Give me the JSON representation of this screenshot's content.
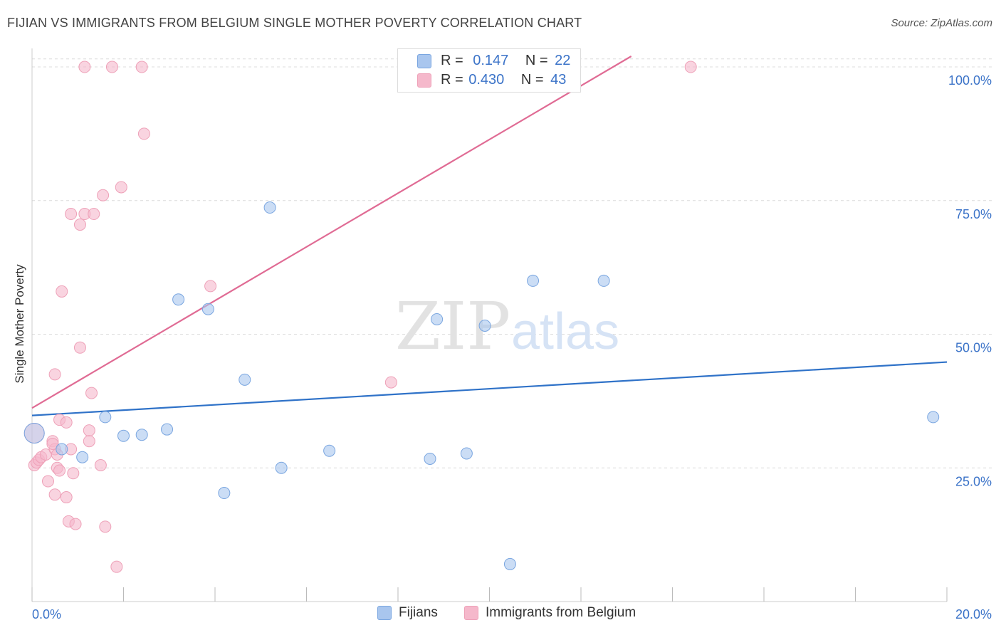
{
  "header": {
    "title": "FIJIAN VS IMMIGRANTS FROM BELGIUM SINGLE MOTHER POVERTY CORRELATION CHART",
    "source": "Source: ZipAtlas.com"
  },
  "watermark": {
    "zip": "ZIP",
    "atlas": "atlas"
  },
  "stats": {
    "r_label": "R =",
    "n_label": "N =",
    "rows": [
      {
        "r": "0.147",
        "n": "22",
        "color": "#a9c6ee"
      },
      {
        "r": "0.430",
        "n": "43",
        "color": "#f5b8cb"
      }
    ]
  },
  "legend": {
    "items": [
      {
        "label": "Fijians",
        "color": "#a9c6ee"
      },
      {
        "label": "Immigrants from Belgium",
        "color": "#f5b8cb"
      }
    ]
  },
  "chart_data": {
    "type": "scatter",
    "title": "FIJIAN VS IMMIGRANTS FROM BELGIUM SINGLE MOTHER POVERTY CORRELATION CHART",
    "xlabel": "",
    "ylabel": "Single Mother Poverty",
    "xlim": [
      0,
      20
    ],
    "ylim": [
      0,
      102
    ],
    "x_tick_labels": [
      "0.0%",
      "20.0%"
    ],
    "y_ticks": [
      25,
      50,
      75,
      100
    ],
    "y_tick_labels": [
      "25.0%",
      "50.0%",
      "75.0%",
      "100.0%"
    ],
    "grid": true,
    "series": [
      {
        "name": "Fijians",
        "color": "#a9c6ee",
        "stroke": "#7aa6e0",
        "line_color": "#2f72c8",
        "trend": {
          "x": [
            0,
            20
          ],
          "y": [
            34.8,
            44.8
          ]
        },
        "points": [
          {
            "x": 0.05,
            "y": 31.5
          },
          {
            "x": 0.65,
            "y": 28.5
          },
          {
            "x": 1.1,
            "y": 27.0
          },
          {
            "x": 1.6,
            "y": 34.5
          },
          {
            "x": 2.0,
            "y": 31.0
          },
          {
            "x": 2.4,
            "y": 31.2
          },
          {
            "x": 2.95,
            "y": 32.2
          },
          {
            "x": 3.2,
            "y": 56.5
          },
          {
            "x": 3.85,
            "y": 54.7
          },
          {
            "x": 4.2,
            "y": 20.3
          },
          {
            "x": 4.65,
            "y": 41.5
          },
          {
            "x": 5.2,
            "y": 73.7
          },
          {
            "x": 5.45,
            "y": 25.0
          },
          {
            "x": 6.5,
            "y": 28.2
          },
          {
            "x": 8.7,
            "y": 26.7
          },
          {
            "x": 8.85,
            "y": 52.8
          },
          {
            "x": 9.5,
            "y": 27.7
          },
          {
            "x": 9.9,
            "y": 51.6
          },
          {
            "x": 10.45,
            "y": 7.0
          },
          {
            "x": 10.95,
            "y": 60.0
          },
          {
            "x": 12.5,
            "y": 60.0
          },
          {
            "x": 19.7,
            "y": 34.5
          }
        ]
      },
      {
        "name": "Immigrants from Belgium",
        "color": "#f5b8cb",
        "stroke": "#eea1b8",
        "line_color": "#e06b94",
        "trend": {
          "x": [
            0,
            13.1
          ],
          "y": [
            36.2,
            102
          ]
        },
        "points": [
          {
            "x": 0.05,
            "y": 25.5
          },
          {
            "x": 0.1,
            "y": 26.0
          },
          {
            "x": 0.15,
            "y": 26.5
          },
          {
            "x": 0.2,
            "y": 27.0
          },
          {
            "x": 0.3,
            "y": 27.5
          },
          {
            "x": 0.35,
            "y": 22.5
          },
          {
            "x": 0.45,
            "y": 30.0
          },
          {
            "x": 0.5,
            "y": 28.5
          },
          {
            "x": 0.55,
            "y": 27.5
          },
          {
            "x": 0.45,
            "y": 29.5
          },
          {
            "x": 0.5,
            "y": 20.0
          },
          {
            "x": 0.5,
            "y": 42.5
          },
          {
            "x": 0.55,
            "y": 25.0
          },
          {
            "x": 0.6,
            "y": 34.0
          },
          {
            "x": 0.6,
            "y": 24.5
          },
          {
            "x": 0.65,
            "y": 58.0
          },
          {
            "x": 0.75,
            "y": 33.5
          },
          {
            "x": 0.75,
            "y": 19.5
          },
          {
            "x": 0.8,
            "y": 15.0
          },
          {
            "x": 0.85,
            "y": 72.5
          },
          {
            "x": 0.85,
            "y": 28.5
          },
          {
            "x": 0.9,
            "y": 24.0
          },
          {
            "x": 0.95,
            "y": 14.5
          },
          {
            "x": 1.05,
            "y": 70.5
          },
          {
            "x": 1.05,
            "y": 47.5
          },
          {
            "x": 1.15,
            "y": 72.5
          },
          {
            "x": 1.25,
            "y": 32.0
          },
          {
            "x": 1.25,
            "y": 30.0
          },
          {
            "x": 1.3,
            "y": 39.0
          },
          {
            "x": 1.35,
            "y": 72.5
          },
          {
            "x": 1.5,
            "y": 25.5
          },
          {
            "x": 1.55,
            "y": 76.0
          },
          {
            "x": 1.6,
            "y": 14.0
          },
          {
            "x": 1.75,
            "y": 100.0
          },
          {
            "x": 1.85,
            "y": 6.5
          },
          {
            "x": 1.95,
            "y": 77.5
          },
          {
            "x": 2.45,
            "y": 87.5
          },
          {
            "x": 2.4,
            "y": 100.0
          },
          {
            "x": 1.15,
            "y": 100.0
          },
          {
            "x": 3.9,
            "y": 59.0
          },
          {
            "x": 7.85,
            "y": 41.0
          },
          {
            "x": 14.4,
            "y": 100.0
          },
          {
            "x": 0.05,
            "y": 31.5
          }
        ]
      }
    ]
  }
}
